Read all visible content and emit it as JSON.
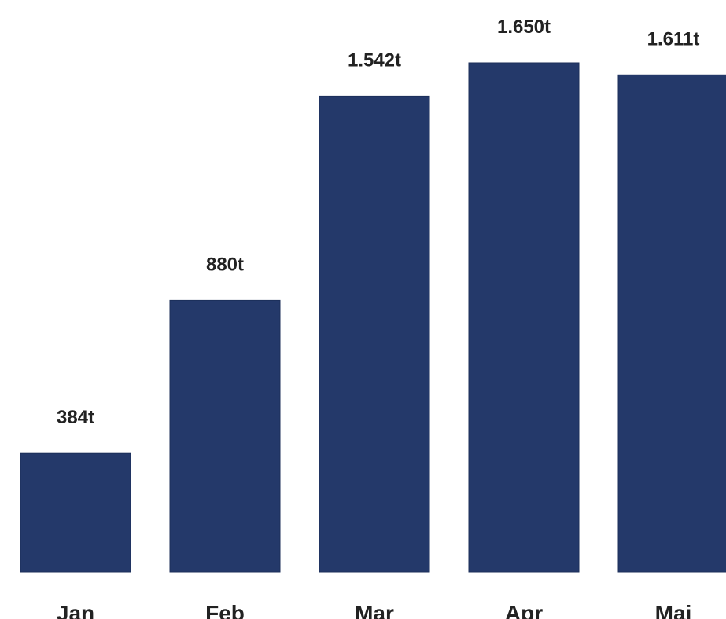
{
  "colors": {
    "bar": "#24396a",
    "bar_edge": "#1c2f5a",
    "text": "#222222",
    "background": "#ffffff"
  },
  "chart_data": {
    "type": "bar",
    "title": "",
    "xlabel": "",
    "ylabel": "",
    "categories": [
      "Jan",
      "Feb",
      "Mar",
      "Apr",
      "Maj"
    ],
    "values": [
      384,
      880,
      1542,
      1650,
      1611
    ],
    "data_labels": [
      "384t",
      "880t",
      "1.542t",
      "1.650t",
      "1.611t"
    ],
    "ylim": [
      0,
      1650
    ],
    "grid": false,
    "legend": "none"
  }
}
